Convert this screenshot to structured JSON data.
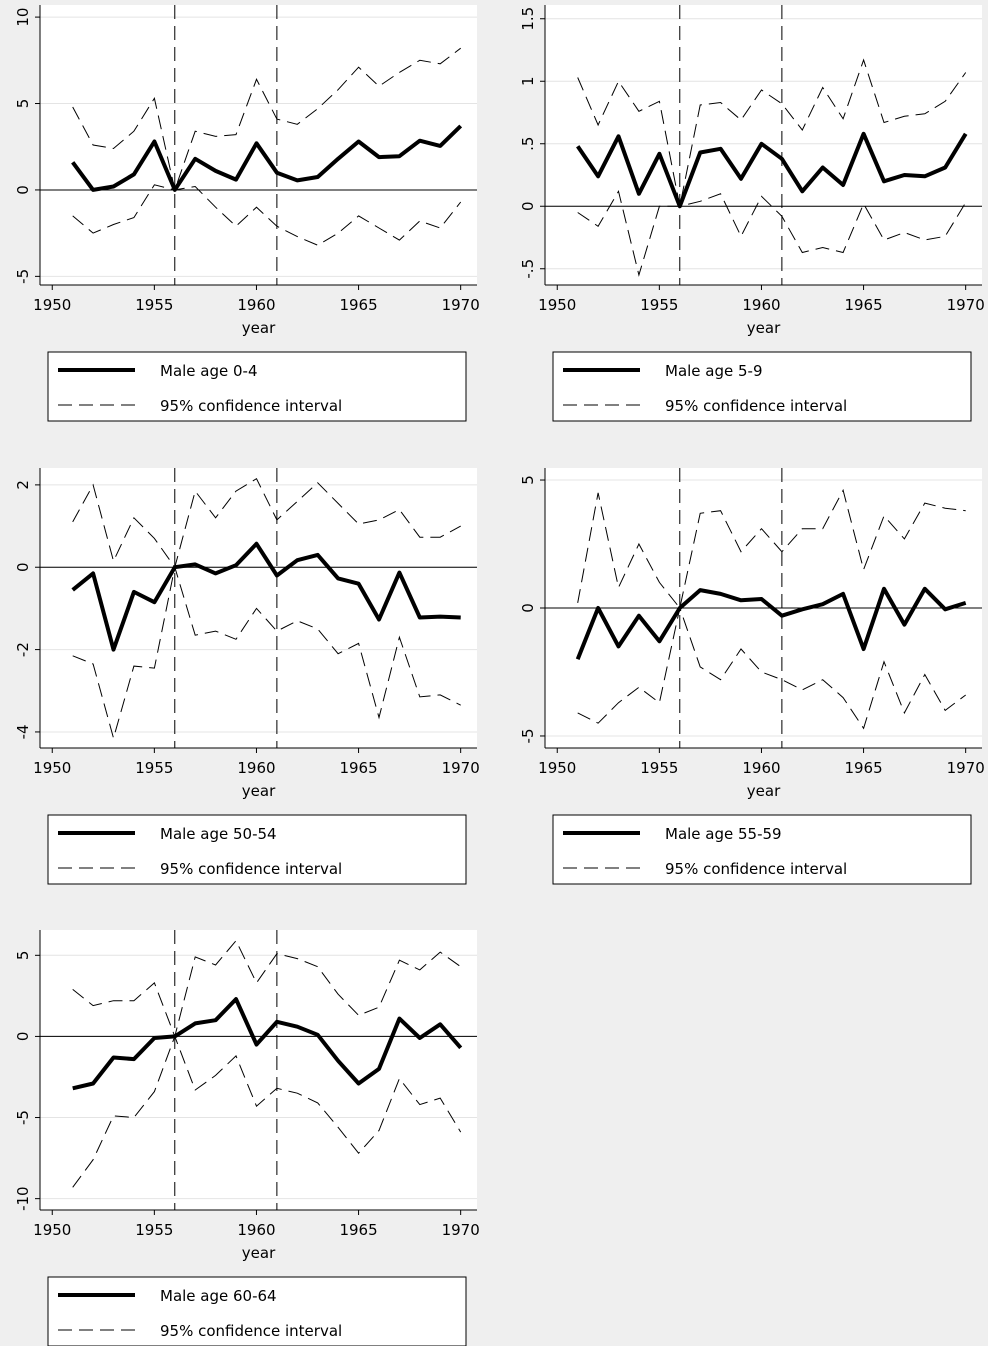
{
  "chart_data": [
    {
      "type": "line",
      "xlabel": "year",
      "x": [
        1951,
        1952,
        1953,
        1954,
        1955,
        1956,
        1957,
        1958,
        1959,
        1960,
        1961,
        1962,
        1963,
        1964,
        1965,
        1966,
        1967,
        1968,
        1969,
        1970
      ],
      "series": [
        {
          "name": "Male age 0-4",
          "color": "#000000",
          "values": [
            1.6,
            0,
            0.2,
            0.9,
            2.8,
            0,
            1.8,
            1.1,
            0.6,
            2.7,
            1.0,
            0.55,
            0.75,
            1.8,
            2.8,
            1.9,
            1.95,
            2.85,
            2.55,
            3.7
          ]
        },
        {
          "name": "95% confidence interval",
          "color": "#000000",
          "upper": [
            4.8,
            2.6,
            2.4,
            3.4,
            5.3,
            0,
            3.4,
            3.1,
            3.2,
            6.4,
            4.1,
            3.8,
            4.7,
            5.8,
            7.1,
            6.0,
            6.8,
            7.5,
            7.3,
            8.2
          ],
          "lower": [
            -1.5,
            -2.5,
            -2.0,
            -1.6,
            0.3,
            0,
            0.2,
            -1.0,
            -2.1,
            -1.0,
            -2.1,
            -2.7,
            -3.2,
            -2.5,
            -1.5,
            -2.2,
            -2.9,
            -1.8,
            -2.2,
            -0.7
          ]
        }
      ],
      "xlim": [
        1949.4,
        1970.8
      ],
      "xticks": [
        1950,
        1955,
        1960,
        1965,
        1970
      ],
      "ylim": [
        -5.5,
        10.7
      ],
      "yticks": [
        -5,
        0,
        5,
        10
      ],
      "vlines": [
        1956,
        1961
      ],
      "hline": 0,
      "grid": true
    },
    {
      "type": "line",
      "xlabel": "year",
      "x": [
        1951,
        1952,
        1953,
        1954,
        1955,
        1956,
        1957,
        1958,
        1959,
        1960,
        1961,
        1962,
        1963,
        1964,
        1965,
        1966,
        1967,
        1968,
        1969,
        1970
      ],
      "series": [
        {
          "name": "Male age 5-9",
          "color": "#000000",
          "values": [
            0.48,
            0.24,
            0.56,
            0.1,
            0.42,
            0,
            0.43,
            0.46,
            0.22,
            0.5,
            0.38,
            0.12,
            0.31,
            0.17,
            0.58,
            0.2,
            0.25,
            0.24,
            0.31,
            0.58
          ]
        },
        {
          "name": "95% confidence interval",
          "color": "#000000",
          "upper": [
            1.03,
            0.65,
            1.0,
            0.76,
            0.84,
            0,
            0.81,
            0.83,
            0.69,
            0.93,
            0.82,
            0.61,
            0.95,
            0.7,
            1.17,
            0.67,
            0.72,
            0.74,
            0.84,
            1.07
          ],
          "lower": [
            -0.05,
            -0.16,
            0.12,
            -0.55,
            0.0,
            0,
            0.04,
            0.1,
            -0.24,
            0.08,
            -0.08,
            -0.37,
            -0.33,
            -0.37,
            0.02,
            -0.27,
            -0.21,
            -0.27,
            -0.24,
            0.03
          ]
        }
      ],
      "xlim": [
        1949.4,
        1970.8
      ],
      "xticks": [
        1950,
        1955,
        1960,
        1965,
        1970
      ],
      "ylim": [
        -0.63,
        1.61
      ],
      "yticks": [
        {
          "value": -0.5,
          "label": "-.5"
        },
        0,
        {
          "value": 0.5,
          "label": ".5"
        },
        1,
        1.5
      ],
      "vlines": [
        1956,
        1961
      ],
      "hline": 0,
      "grid": true
    },
    {
      "type": "line",
      "xlabel": "year",
      "x": [
        1951,
        1952,
        1953,
        1954,
        1955,
        1956,
        1957,
        1958,
        1959,
        1960,
        1961,
        1962,
        1963,
        1964,
        1965,
        1966,
        1967,
        1968,
        1969,
        1970
      ],
      "series": [
        {
          "name": "Male age 50-54",
          "color": "#000000",
          "values": [
            -0.55,
            -0.15,
            -2.0,
            -0.6,
            -0.85,
            0,
            0.07,
            -0.15,
            0.05,
            0.57,
            -0.2,
            0.17,
            0.3,
            -0.27,
            -0.4,
            -1.27,
            -0.13,
            -1.22,
            -1.2,
            -1.22
          ]
        },
        {
          "name": "95% confidence interval",
          "color": "#000000",
          "upper": [
            1.1,
            2.0,
            0.15,
            1.2,
            0.7,
            0,
            1.85,
            1.2,
            1.85,
            2.15,
            1.15,
            1.6,
            2.05,
            1.55,
            1.05,
            1.15,
            1.4,
            0.73,
            0.73,
            1.0
          ],
          "lower": [
            -2.15,
            -2.35,
            -4.15,
            -2.4,
            -2.45,
            0,
            -1.65,
            -1.55,
            -1.75,
            -1.0,
            -1.55,
            -1.3,
            -1.5,
            -2.1,
            -1.85,
            -3.65,
            -1.7,
            -3.15,
            -3.1,
            -3.35
          ]
        }
      ],
      "xlim": [
        1949.4,
        1970.8
      ],
      "xticks": [
        1950,
        1955,
        1960,
        1965,
        1970
      ],
      "ylim": [
        -4.39,
        2.41
      ],
      "yticks": [
        -4,
        -2,
        0,
        2
      ],
      "vlines": [
        1956,
        1961
      ],
      "hline": 0,
      "grid": true
    },
    {
      "type": "line",
      "xlabel": "year",
      "x": [
        1951,
        1952,
        1953,
        1954,
        1955,
        1956,
        1957,
        1958,
        1959,
        1960,
        1961,
        1962,
        1963,
        1964,
        1965,
        1966,
        1967,
        1968,
        1969,
        1970
      ],
      "series": [
        {
          "name": "Male age 55-59",
          "color": "#000000",
          "values": [
            -2.0,
            0,
            -1.5,
            -0.3,
            -1.3,
            0,
            0.7,
            0.55,
            0.3,
            0.35,
            -0.3,
            -0.05,
            0.15,
            0.55,
            -1.6,
            0.75,
            -0.65,
            0.75,
            -0.05,
            0.2
          ]
        },
        {
          "name": "95% confidence interval",
          "color": "#000000",
          "upper": [
            0.2,
            4.5,
            0.8,
            2.5,
            1.0,
            0,
            3.7,
            3.8,
            2.2,
            3.1,
            2.2,
            3.1,
            3.1,
            4.6,
            1.5,
            3.6,
            2.7,
            4.1,
            3.9,
            3.8
          ],
          "lower": [
            -4.1,
            -4.5,
            -3.7,
            -3.1,
            -3.7,
            0,
            -2.3,
            -2.8,
            -1.6,
            -2.5,
            -2.8,
            -3.2,
            -2.8,
            -3.5,
            -4.7,
            -2.1,
            -4.1,
            -2.6,
            -4.0,
            -3.4
          ]
        }
      ],
      "xlim": [
        1949.4,
        1970.8
      ],
      "xticks": [
        1950,
        1955,
        1960,
        1965,
        1970
      ],
      "ylim": [
        -5.47,
        5.47
      ],
      "yticks": [
        -5,
        0,
        5
      ],
      "vlines": [
        1956,
        1961
      ],
      "hline": 0,
      "grid": true
    },
    {
      "type": "line",
      "xlabel": "year",
      "x": [
        1951,
        1952,
        1953,
        1954,
        1955,
        1956,
        1957,
        1958,
        1959,
        1960,
        1961,
        1962,
        1963,
        1964,
        1965,
        1966,
        1967,
        1968,
        1969,
        1970
      ],
      "series": [
        {
          "name": "Male age 60-64",
          "color": "#000000",
          "values": [
            -3.2,
            -2.9,
            -1.3,
            -1.4,
            -0.1,
            0,
            0.8,
            1.0,
            2.3,
            -0.5,
            0.9,
            0.6,
            0.1,
            -1.5,
            -2.9,
            -2.0,
            1.1,
            -0.1,
            0.75,
            -0.7
          ]
        },
        {
          "name": "95% confidence interval",
          "color": "#000000",
          "upper": [
            2.9,
            1.9,
            2.2,
            2.2,
            3.3,
            0,
            4.9,
            4.4,
            5.9,
            3.3,
            5.1,
            4.8,
            4.3,
            2.6,
            1.3,
            1.8,
            4.7,
            4.1,
            5.2,
            4.3
          ],
          "lower": [
            -9.3,
            -7.6,
            -4.9,
            -5.0,
            -3.4,
            0,
            -3.3,
            -2.4,
            -1.2,
            -4.3,
            -3.2,
            -3.5,
            -4.1,
            -5.6,
            -7.2,
            -5.8,
            -2.6,
            -4.2,
            -3.8,
            -5.9
          ]
        }
      ],
      "xlim": [
        1949.4,
        1970.8
      ],
      "xticks": [
        1950,
        1955,
        1960,
        1965,
        1970
      ],
      "ylim": [
        -10.7,
        6.56
      ],
      "yticks": [
        -10,
        -5,
        0,
        5
      ],
      "vlines": [
        1956,
        1961
      ],
      "hline": 0,
      "grid": true
    }
  ]
}
